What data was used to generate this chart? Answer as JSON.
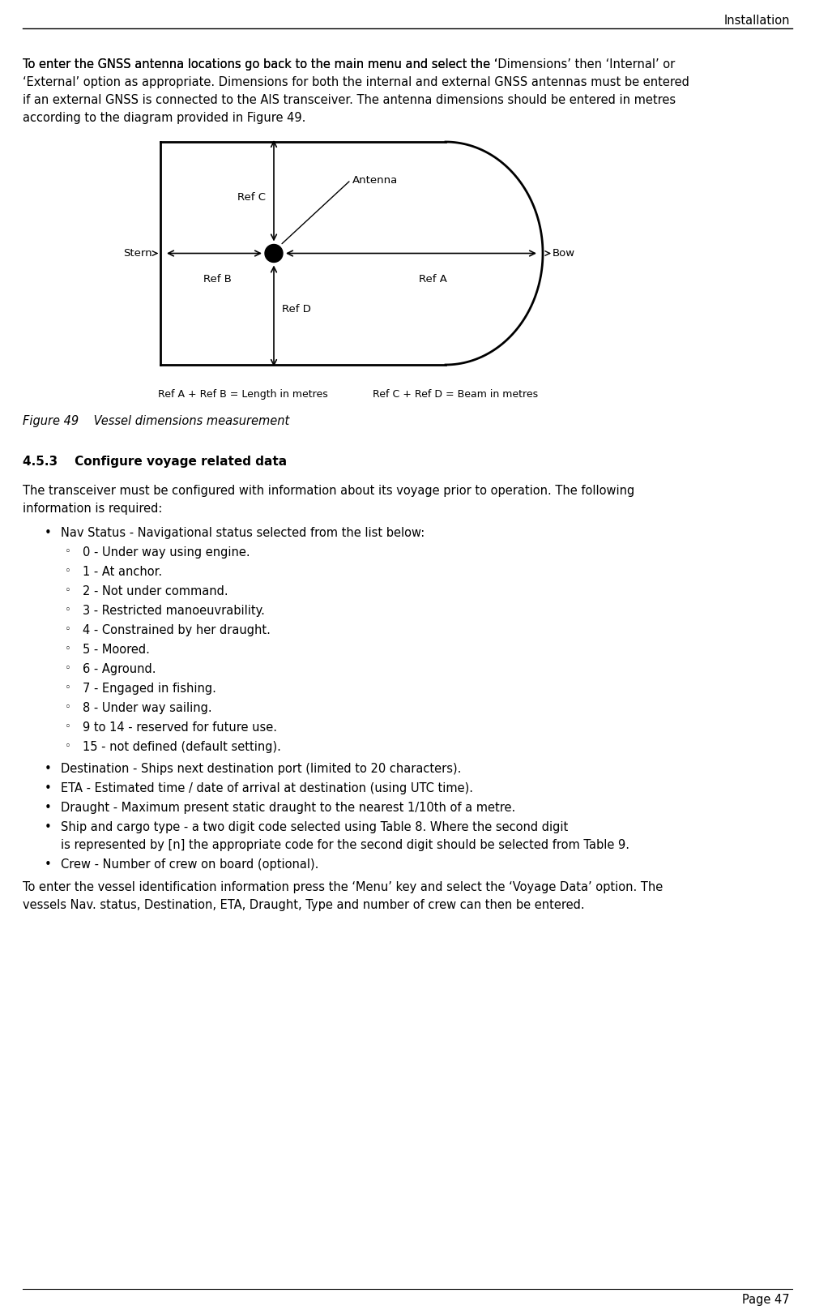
{
  "page_header": "Installation",
  "footer_text": "Page 47",
  "body_text_1_parts": [
    {
      "text": "To enter the GNSS antenna locations go back to the main menu and select the ‘",
      "style": "normal"
    },
    {
      "text": "Dimensions",
      "style": "italic"
    },
    {
      "text": "’ then ‘",
      "style": "normal"
    },
    {
      "text": "Internal",
      "style": "italic"
    },
    {
      "text": "’ or",
      "style": "normal"
    }
  ],
  "body_text_line1": "To enter the GNSS antenna locations go back to the main menu and select the ‘Dimensions’ then ‘Internal’ or",
  "body_text_line2": "‘External’ option as appropriate. Dimensions for both the internal and external GNSS antennas must be entered",
  "body_text_line3": "if an external GNSS is connected to the AIS transceiver. The antenna dimensions should be entered in metres",
  "body_text_line4": "according to the diagram provided in Figure 49.",
  "figure_caption_1": "Ref A + Ref B = Length in metres",
  "figure_caption_2": "Ref C + Ref D = Beam in metres",
  "figure_label": "Figure 49    Vessel dimensions measurement",
  "section_heading_num": "4.5.3",
  "section_heading_text": "Configure voyage related data",
  "section_body_line1": "The transceiver must be configured with information about its voyage prior to operation. The following",
  "section_body_line2": "information is required:",
  "bullet1": "Nav Status - Navigational status selected from the list below:",
  "sub_bullets": [
    "0 - Under way using engine.",
    "1 - At anchor.",
    "2 - Not under command.",
    "3 - Restricted manoeuvrability.",
    "4 - Constrained by her draught.",
    "5 - Moored.",
    "6 - Aground.",
    "7 - Engaged in fishing.",
    "8 - Under way sailing.",
    "9 to 14 - reserved for future use.",
    "15 - not defined (default setting)."
  ],
  "main_bullets": [
    "Destination - Ships next destination port (limited to 20 characters).",
    "ETA - Estimated time / date of arrival at destination (using UTC time).",
    "Draught - Maximum present static draught to the nearest 1/10th of a metre.",
    "Ship and cargo type - a two digit code selected using Table 8. Where the second digit is represented by [n] the appropriate code for the second digit should be selected from Table 9.",
    "Crew - Number of crew on board (optional)."
  ],
  "closing_line1": "To enter the vessel identification information press the ‘Menu’ key and select the ‘Voyage Data’ option. The",
  "closing_line2": "vessels Nav. status, Destination, ETA, Draught, Type and number of crew can then be entered.",
  "bg_color": "#ffffff",
  "text_color": "#000000",
  "font_size_body": 10.5,
  "font_size_small": 9.0,
  "font_size_section": 11.0
}
